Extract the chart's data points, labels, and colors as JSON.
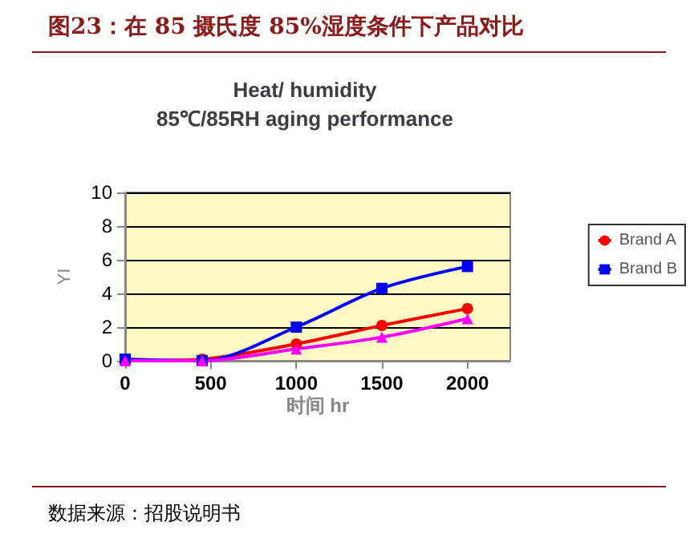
{
  "chart_data": {
    "type": "line",
    "title": "图23：在 85 摄氏度 85%湿度条件下产品对比",
    "subtitle": "Heat/ humidity\n85℃/85RH aging performance",
    "xlabel": "时间 hr",
    "ylabel": "YI",
    "x": [
      0,
      450,
      1000,
      1500,
      2000
    ],
    "series": [
      {
        "name": "Brand A",
        "color": "#ff0000",
        "marker": "circle",
        "values": [
          0,
          0.1,
          1.0,
          2.1,
          3.1
        ]
      },
      {
        "name": "Brand B",
        "color": "#0000ff",
        "marker": "square",
        "values": [
          0.1,
          0,
          2.0,
          4.3,
          5.6
        ]
      },
      {
        "color": "#ff00ff",
        "marker": "triangle",
        "values": [
          0,
          0,
          0.7,
          1.4,
          2.5
        ]
      }
    ],
    "xlim": [
      0,
      2250
    ],
    "xticks": [
      0,
      500,
      1000,
      1500,
      2000
    ],
    "ylim": [
      0,
      10
    ],
    "yticks": [
      0,
      2,
      4,
      6,
      8,
      10
    ],
    "grid": "y",
    "legend": "right",
    "annotations": [
      "数据来源：招股说明书"
    ]
  }
}
